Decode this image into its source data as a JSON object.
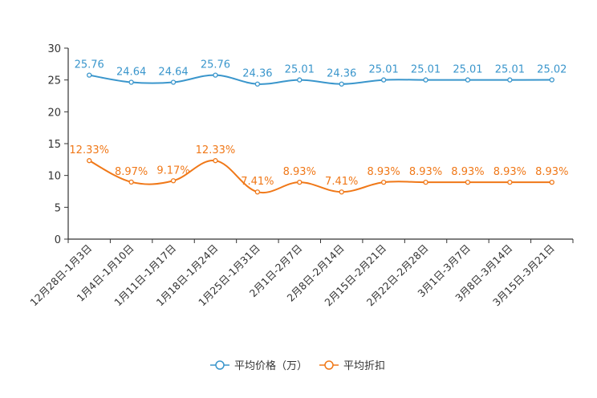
{
  "chart_data": {
    "type": "line",
    "title": "",
    "xlabel": "",
    "ylabel": "",
    "ylim": [
      0,
      30
    ],
    "yticks": [
      "0",
      "5",
      "10",
      "15",
      "20",
      "25",
      "30"
    ],
    "grid": false,
    "legend_position": "bottom",
    "categories": [
      "12月28日-1月3日",
      "1月4日-1月10日",
      "1月11日-1月17日",
      "1月18日-1月24日",
      "1月25日-1月31日",
      "2月1日-2月7日",
      "2月8日-2月14日",
      "2月15日-2月21日",
      "2月22日-2月28日",
      "3月1日-3月7日",
      "3月8日-3月14日",
      "3月15日-3月21日"
    ],
    "series": [
      {
        "name": "平均价格（万）",
        "color": "#3a96cc",
        "values": [
          25.76,
          24.64,
          24.64,
          25.76,
          24.36,
          25.01,
          24.36,
          25.01,
          25.01,
          25.01,
          25.01,
          25.02
        ],
        "labels": [
          "25.76",
          "24.64",
          "24.64",
          "25.76",
          "24.36",
          "25.01",
          "24.36",
          "25.01",
          "25.01",
          "25.01",
          "25.01",
          "25.02"
        ]
      },
      {
        "name": "平均折扣",
        "color": "#f07818",
        "values": [
          12.33,
          8.97,
          9.17,
          12.33,
          7.41,
          8.93,
          7.41,
          8.93,
          8.93,
          8.93,
          8.93,
          8.93
        ],
        "labels": [
          "12.33%",
          "8.97%",
          "9.17%",
          "12.33%",
          "7.41%",
          "8.93%",
          "7.41%",
          "8.93%",
          "8.93%",
          "8.93%",
          "8.93%",
          "8.93%"
        ]
      }
    ]
  }
}
